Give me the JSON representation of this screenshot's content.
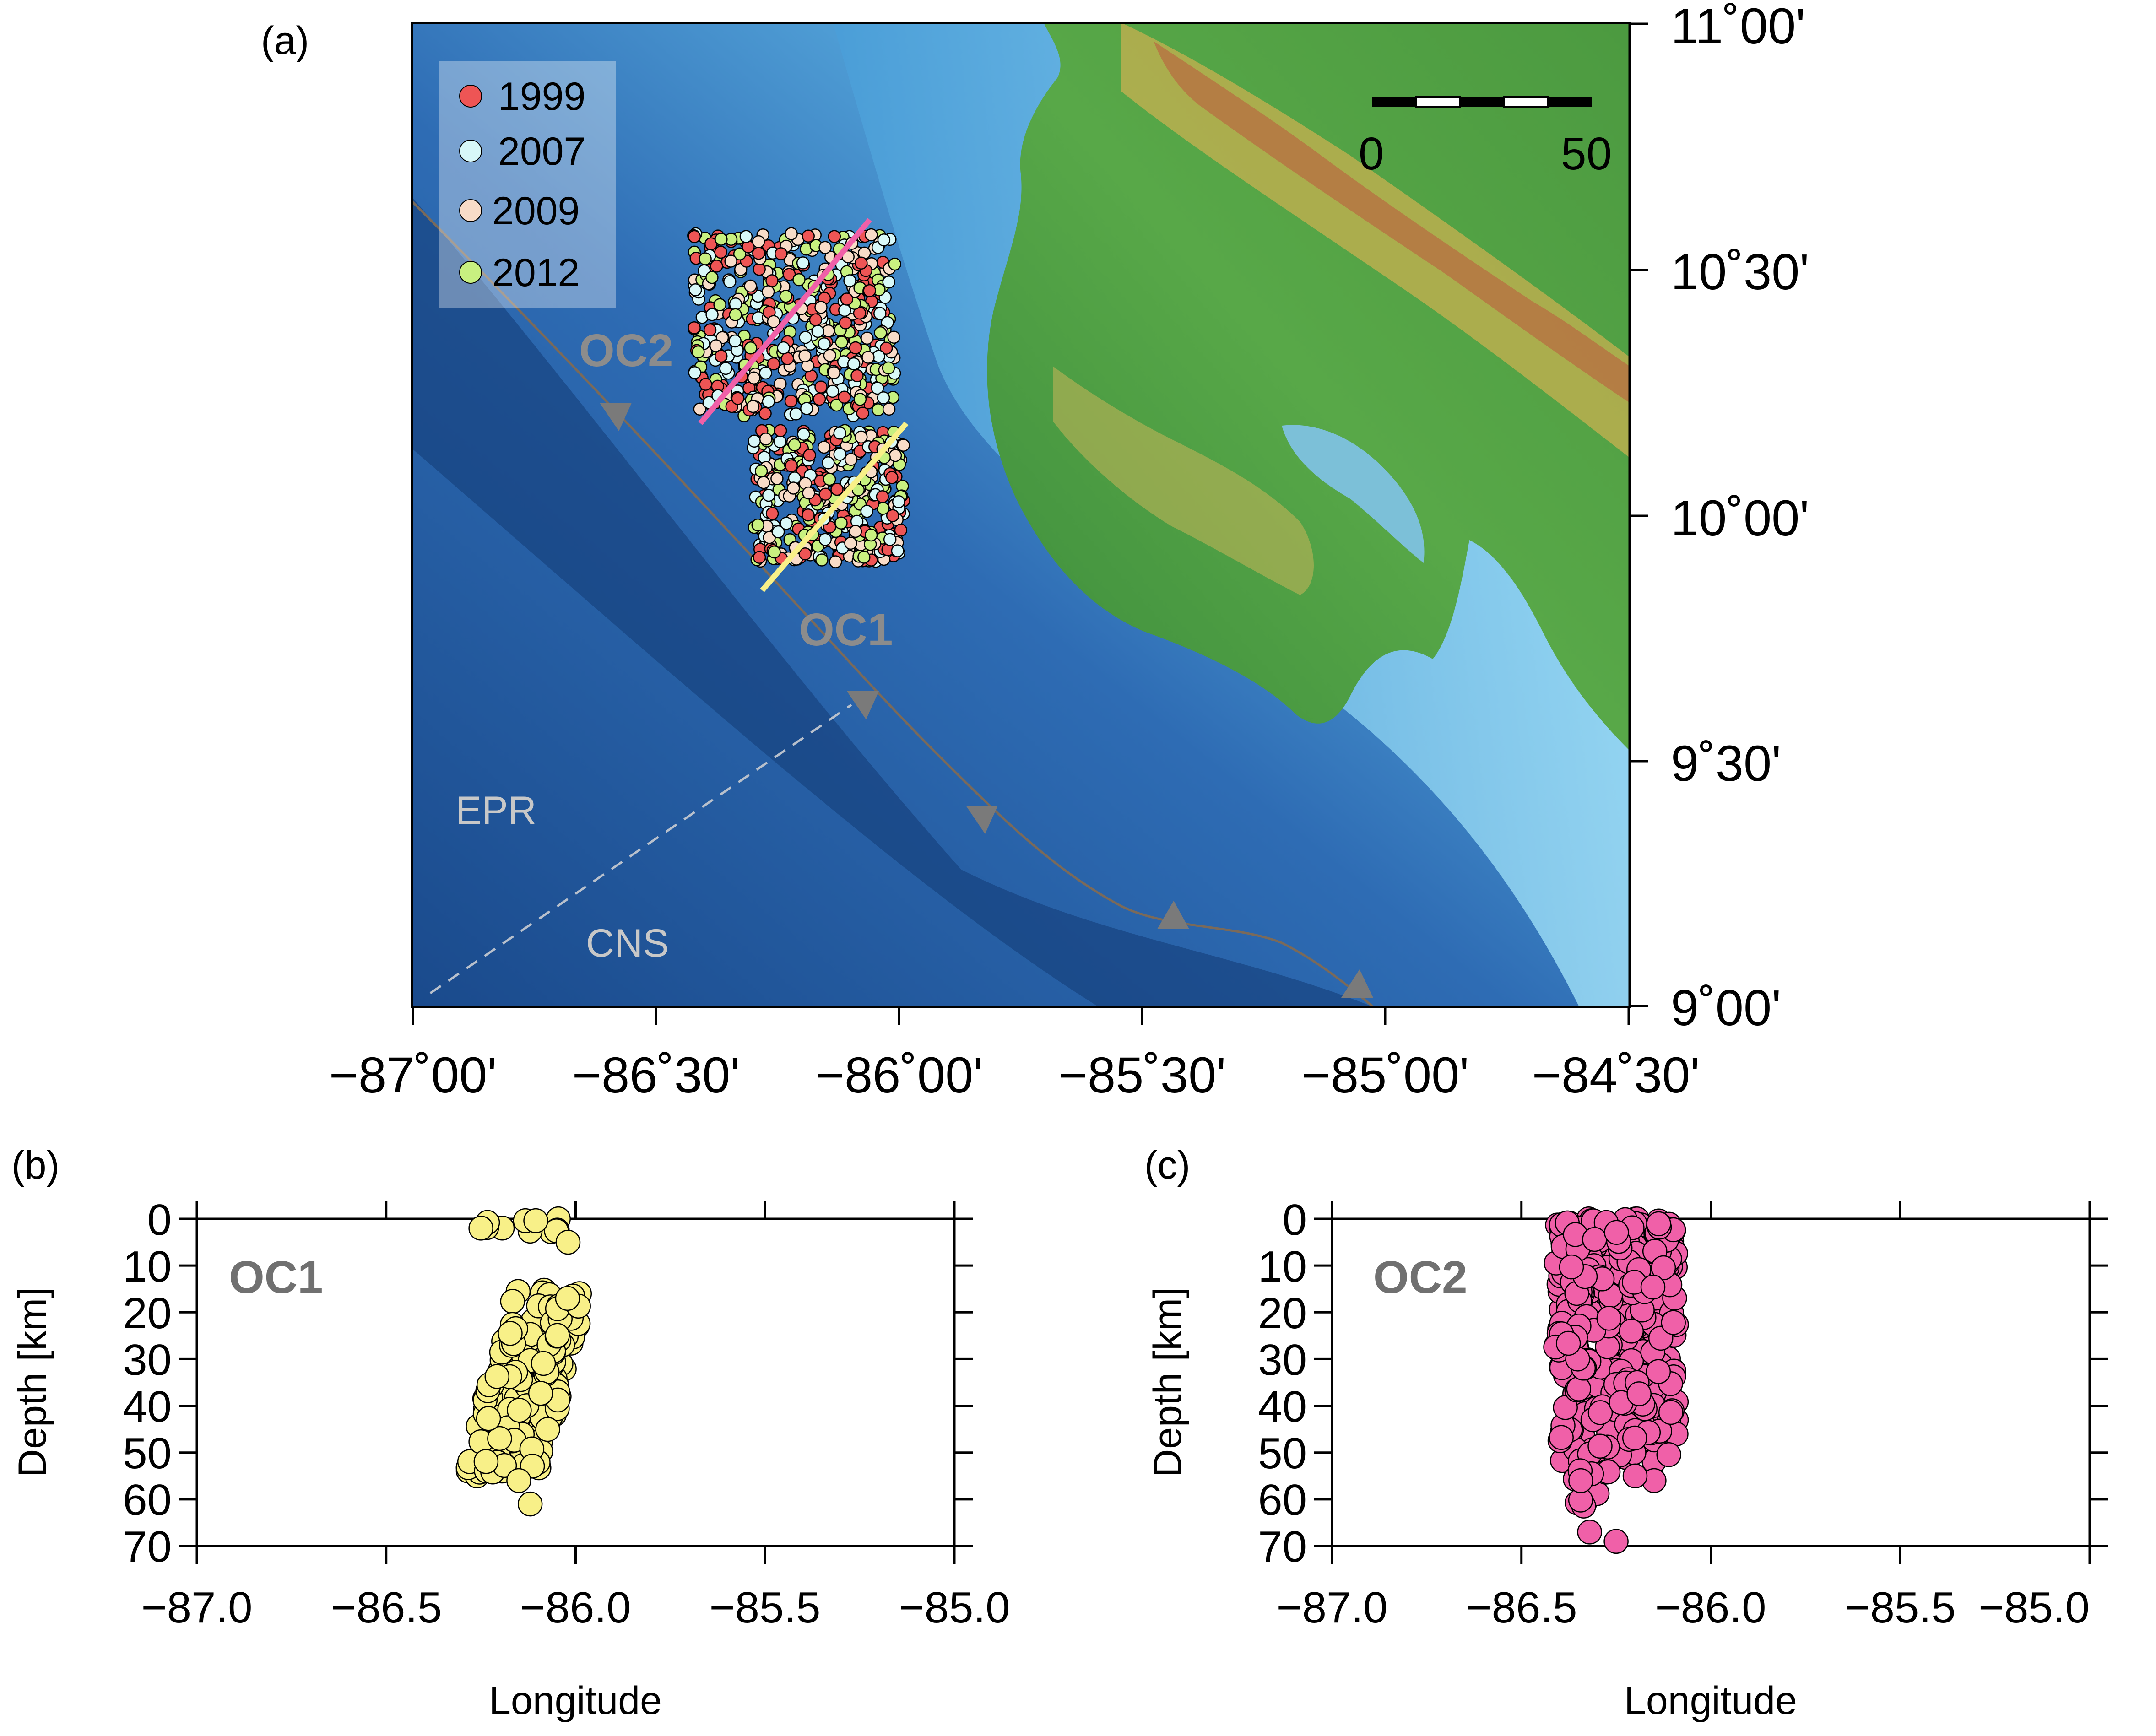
{
  "panel_a": {
    "label": "(a)",
    "lat_ticks": [
      "11˚00'",
      "10˚30'",
      "10˚00'",
      "9˚30'",
      "9˚00'"
    ],
    "lon_ticks": [
      "−87˚00'",
      "−86˚30'",
      "−86˚00'",
      "−85˚30'",
      "−85˚00'",
      "−84˚30'"
    ],
    "legend": [
      {
        "label": "1999",
        "color": "#ee5555"
      },
      {
        "label": "2007",
        "color": "#d8f8f8"
      },
      {
        "label": "2009",
        "color": "#f8dcc8"
      },
      {
        "label": "2012",
        "color": "#c8f080"
      }
    ],
    "scale_bar": {
      "start": "0",
      "end": "50"
    },
    "labels": {
      "oc2": "OC2",
      "oc1": "OC1",
      "epr": "EPR",
      "cns": "CNS"
    }
  },
  "panel_b": {
    "label": "(b)",
    "title": "OC1",
    "ylabel": "Depth [km]",
    "xlabel": "Longitude",
    "xticks": [
      "−87.0",
      "−86.5",
      "−86.0",
      "−85.5",
      "−85.0"
    ],
    "yticks": [
      "0",
      "10",
      "20",
      "30",
      "40",
      "50",
      "60",
      "70"
    ],
    "color": "#f8f088"
  },
  "panel_c": {
    "label": "(c)",
    "title": "OC2",
    "ylabel": "Depth [km]",
    "xlabel": "Longitude",
    "xticks": [
      "−87.0",
      "−86.5",
      "−86.0",
      "−85.5",
      "−85.0"
    ],
    "yticks": [
      "0",
      "10",
      "20",
      "30",
      "40",
      "50",
      "60",
      "70"
    ],
    "color": "#f060a8"
  },
  "chart_data": [
    {
      "type": "scatter",
      "title": "OC1",
      "xlabel": "Longitude",
      "ylabel": "Depth [km]",
      "xlim": [
        -87.0,
        -85.0
      ],
      "ylim": [
        70,
        0
      ],
      "grid": false,
      "series": [
        {
          "x_range": [
            -86.28,
            -86.0
          ],
          "y_range": [
            0,
            61
          ]
        }
      ]
    },
    {
      "type": "scatter",
      "title": "OC2",
      "xlabel": "Longitude",
      "ylabel": "Depth [km]",
      "xlim": [
        -87.0,
        -85.0
      ],
      "ylim": [
        70,
        0
      ],
      "grid": false,
      "series": [
        {
          "x_range": [
            -86.43,
            -86.07
          ],
          "y_range": [
            0,
            69
          ]
        }
      ]
    }
  ]
}
